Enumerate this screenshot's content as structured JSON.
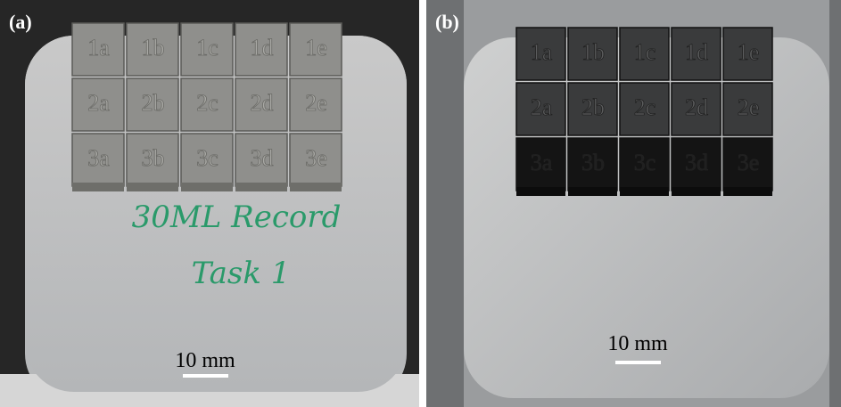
{
  "panels": [
    {
      "label": "(a)",
      "scale_bar": "10 mm",
      "cubes": [
        [
          "1a",
          "1b",
          "1c",
          "1d",
          "1e"
        ],
        [
          "2a",
          "2b",
          "2c",
          "2d",
          "2e"
        ],
        [
          "3a",
          "3b",
          "3c",
          "3d",
          "3e"
        ]
      ],
      "handwriting": [
        "30ML Record",
        "Task 1"
      ]
    },
    {
      "label": "(b)",
      "scale_bar": "10 mm",
      "cubes": [
        [
          "1a",
          "1b",
          "1c",
          "1d",
          "1e"
        ],
        [
          "2a",
          "2b",
          "2c",
          "2d",
          "2e"
        ],
        [
          "3a",
          "3b",
          "3c",
          "3d",
          "3e"
        ]
      ]
    }
  ]
}
